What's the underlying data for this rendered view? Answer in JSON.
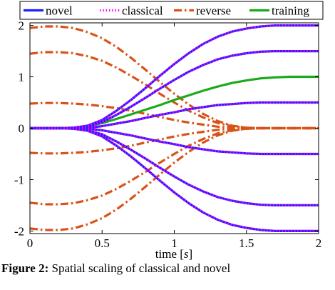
{
  "chart_data": {
    "type": "line",
    "title": "",
    "xlabel": "time [s]",
    "xlabel_parts": {
      "text": "time ",
      "open": "[",
      "unit": "s",
      "close": "]"
    },
    "ylabel": "",
    "xlim": [
      0,
      2
    ],
    "ylim": [
      -2.05,
      2.05
    ],
    "x_ticks": [
      0,
      0.5,
      1,
      1.5,
      2
    ],
    "x_tick_labels": [
      "0",
      "0.5",
      "1",
      "1.5",
      "2"
    ],
    "y_ticks": [
      2,
      1,
      0,
      -1,
      -2
    ],
    "y_tick_labels": [
      "2",
      "1",
      "0",
      "-1",
      "-2"
    ],
    "grid": false,
    "legend_position": "top",
    "legend": [
      "novel",
      "classical",
      "reverse",
      "training"
    ],
    "colors": {
      "novel": "#1f1fff",
      "classical": "#ff00ff",
      "reverse": "#d95319",
      "training": "#1aaa1a"
    },
    "x": [
      0,
      0.1,
      0.2,
      0.3,
      0.4,
      0.5,
      0.6,
      0.7,
      0.8,
      0.9,
      1.0,
      1.1,
      1.2,
      1.3,
      1.4,
      1.5,
      1.6,
      1.7,
      1.8,
      1.9,
      2.0
    ],
    "series": [
      {
        "name": "novel",
        "style": "solid",
        "values_sets": [
          [
            0,
            0,
            0,
            0.01,
            0.05,
            0.16,
            0.34,
            0.55,
            0.78,
            1.02,
            1.25,
            1.46,
            1.64,
            1.78,
            1.88,
            1.94,
            1.98,
            2.0,
            2.0,
            2.0,
            2.0
          ],
          [
            0,
            0,
            0,
            0.01,
            0.04,
            0.12,
            0.26,
            0.42,
            0.59,
            0.77,
            0.94,
            1.1,
            1.23,
            1.34,
            1.41,
            1.46,
            1.49,
            1.5,
            1.5,
            1.5,
            1.5
          ],
          [
            0,
            0,
            0,
            0,
            0.01,
            0.04,
            0.09,
            0.14,
            0.2,
            0.26,
            0.31,
            0.37,
            0.41,
            0.45,
            0.47,
            0.49,
            0.5,
            0.5,
            0.5,
            0.5,
            0.5
          ],
          [
            0,
            0,
            0,
            0,
            -0.01,
            -0.04,
            -0.09,
            -0.14,
            -0.2,
            -0.26,
            -0.31,
            -0.37,
            -0.41,
            -0.45,
            -0.47,
            -0.49,
            -0.5,
            -0.5,
            -0.5,
            -0.5,
            -0.5
          ],
          [
            0,
            0,
            0,
            -0.01,
            -0.04,
            -0.12,
            -0.26,
            -0.42,
            -0.59,
            -0.77,
            -0.94,
            -1.1,
            -1.23,
            -1.34,
            -1.41,
            -1.46,
            -1.49,
            -1.5,
            -1.5,
            -1.5,
            -1.5
          ],
          [
            0,
            0,
            0,
            -0.01,
            -0.05,
            -0.16,
            -0.34,
            -0.55,
            -0.78,
            -1.02,
            -1.25,
            -1.46,
            -1.64,
            -1.78,
            -1.88,
            -1.94,
            -1.98,
            -2.0,
            -2.0,
            -2.0,
            -2.0
          ]
        ]
      },
      {
        "name": "classical",
        "style": "dotted",
        "values_sets": [
          [
            0,
            0,
            0,
            0.01,
            0.05,
            0.16,
            0.34,
            0.55,
            0.78,
            1.02,
            1.25,
            1.46,
            1.64,
            1.78,
            1.88,
            1.94,
            1.98,
            2.0,
            2.0,
            2.0,
            2.0
          ],
          [
            0,
            0,
            0,
            0.01,
            0.04,
            0.12,
            0.26,
            0.42,
            0.59,
            0.77,
            0.94,
            1.1,
            1.23,
            1.34,
            1.41,
            1.46,
            1.49,
            1.5,
            1.5,
            1.5,
            1.5
          ],
          [
            0,
            0,
            0,
            0,
            0.01,
            0.04,
            0.09,
            0.14,
            0.2,
            0.26,
            0.31,
            0.37,
            0.41,
            0.45,
            0.47,
            0.49,
            0.5,
            0.5,
            0.5,
            0.5,
            0.5
          ],
          [
            0,
            0,
            0,
            0,
            -0.01,
            -0.04,
            -0.09,
            -0.14,
            -0.2,
            -0.26,
            -0.31,
            -0.37,
            -0.41,
            -0.45,
            -0.47,
            -0.49,
            -0.5,
            -0.5,
            -0.5,
            -0.5,
            -0.5
          ],
          [
            0,
            0,
            0,
            -0.01,
            -0.04,
            -0.12,
            -0.26,
            -0.42,
            -0.59,
            -0.77,
            -0.94,
            -1.1,
            -1.23,
            -1.34,
            -1.41,
            -1.46,
            -1.49,
            -1.5,
            -1.5,
            -1.5,
            -1.5
          ],
          [
            0,
            0,
            0,
            -0.01,
            -0.05,
            -0.16,
            -0.34,
            -0.55,
            -0.78,
            -1.02,
            -1.25,
            -1.46,
            -1.64,
            -1.78,
            -1.88,
            -1.94,
            -1.98,
            -2.0,
            -2.0,
            -2.0,
            -2.0
          ]
        ]
      },
      {
        "name": "reverse",
        "style": "dashdot",
        "values_sets": [
          [
            1.95,
            1.98,
            1.98,
            1.95,
            1.87,
            1.75,
            1.58,
            1.37,
            1.14,
            0.9,
            0.67,
            0.46,
            0.28,
            0.14,
            0.05,
            0.01,
            0,
            0,
            0,
            0,
            0
          ],
          [
            1.45,
            1.48,
            1.48,
            1.46,
            1.4,
            1.31,
            1.18,
            1.02,
            0.85,
            0.67,
            0.5,
            0.34,
            0.21,
            0.1,
            0.04,
            0.01,
            0,
            0,
            0,
            0,
            0
          ],
          [
            0.48,
            0.49,
            0.49,
            0.48,
            0.46,
            0.43,
            0.39,
            0.34,
            0.28,
            0.22,
            0.16,
            0.11,
            0.07,
            0.03,
            0.01,
            0,
            0,
            0,
            0,
            0,
            0
          ],
          [
            -0.48,
            -0.49,
            -0.49,
            -0.48,
            -0.46,
            -0.43,
            -0.39,
            -0.34,
            -0.28,
            -0.22,
            -0.16,
            -0.11,
            -0.07,
            -0.03,
            -0.01,
            0,
            0,
            0,
            0,
            0,
            0
          ],
          [
            -1.45,
            -1.48,
            -1.48,
            -1.46,
            -1.4,
            -1.31,
            -1.18,
            -1.02,
            -0.85,
            -0.67,
            -0.5,
            -0.34,
            -0.21,
            -0.1,
            -0.04,
            -0.01,
            0,
            0,
            0,
            0,
            0
          ],
          [
            -1.95,
            -1.98,
            -1.98,
            -1.95,
            -1.87,
            -1.75,
            -1.58,
            -1.37,
            -1.14,
            -0.9,
            -0.67,
            -0.46,
            -0.28,
            -0.14,
            -0.05,
            -0.01,
            0,
            0,
            0,
            0,
            0
          ]
        ]
      },
      {
        "name": "training",
        "style": "solid",
        "values_sets": [
          [
            0,
            0,
            0,
            0.01,
            0.04,
            0.1,
            0.18,
            0.27,
            0.36,
            0.45,
            0.55,
            0.64,
            0.73,
            0.81,
            0.88,
            0.93,
            0.97,
            0.99,
            1.0,
            1.0,
            1.0
          ]
        ]
      }
    ]
  },
  "caption": {
    "label": "Figure 2:",
    "text": "Spatial scaling of classical and novel"
  }
}
